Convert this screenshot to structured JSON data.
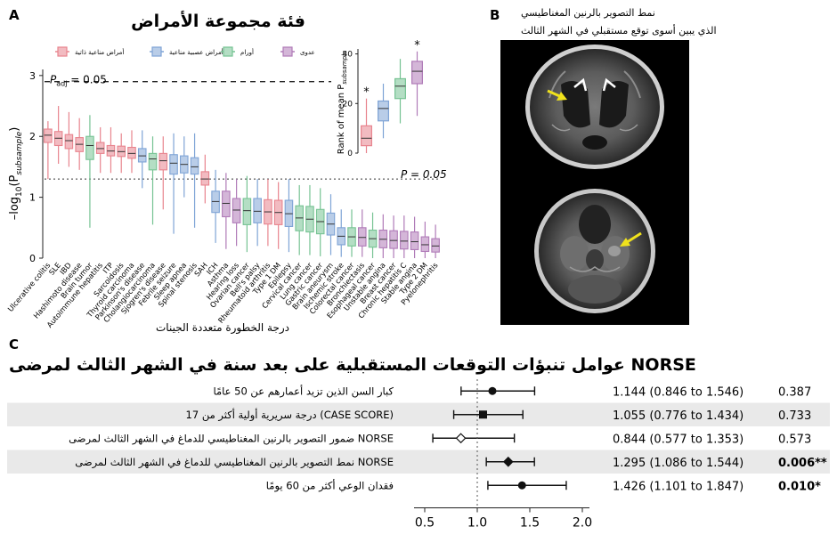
{
  "panel_a": {
    "label": "A",
    "title": "فئة مجموعة الأمراض",
    "legend": [
      {
        "name": "أمراض مناعية ذاتية",
        "color": "#e8848e"
      },
      {
        "name": "أمراض عصبية مناعية",
        "color": "#7fa4d6"
      },
      {
        "name": "أورام",
        "color": "#76c393"
      },
      {
        "name": "عدوى",
        "color": "#b07bb8"
      }
    ],
    "padj_label": "P",
    "padj_sub": "adj",
    "padj_rest": " = 0.05",
    "p_label": "P = 0.05",
    "ylabel_pre": "–log",
    "ylabel_sub": "10",
    "ylabel_paren": "(P",
    "ylabel_psub": "subsample",
    "ylabel_close": ")",
    "xlabel": "درجة الخطورة متعددة الجينات",
    "yticks": [
      "0",
      "1",
      "2",
      "3"
    ],
    "inset_ylabel": "Rank of mean P",
    "inset_ylabel_sub": "subsample",
    "inset_yticks": [
      "0",
      "20",
      "40"
    ],
    "inset_star": "*"
  },
  "panel_b": {
    "label": "B",
    "caption_line1": "نمط التصوير بالرنين المغناطيسي",
    "caption_line2": "الذي يبين أسوى توقع مستقبلي في الشهر الثالث"
  },
  "panel_c": {
    "label": "C",
    "title": "عوامل تنبؤات التوقعات المستقبلية على بعد سنة في الشهر الثالث لمرضى NORSE",
    "xticks": [
      "0.5",
      "1.0",
      "1.5",
      "2.0"
    ]
  },
  "chart_data": [
    {
      "type": "box",
      "ylim": [
        0,
        3.1
      ],
      "significance_lines": [
        {
          "label": "P = 0.05",
          "y": 1.3
        },
        {
          "label": "Padj = 0.05",
          "y": 2.9
        }
      ],
      "categories": [
        "Ulcerative colitis",
        "SLE",
        "IBD",
        "Hashimoto disease",
        "Brain tumor",
        "Autoimmune hepatitis",
        "ITP",
        "Sarcoidosis",
        "Thyroid carcinoma",
        "Parkinson's disease",
        "Cholangiocarcinoma",
        "Sjogren's disease",
        "Febrile seizure",
        "Sleep apnea",
        "Spinal stenosis",
        "SAH",
        "ICH",
        "Asthma",
        "Hearing loss",
        "Ovarian cancer",
        "Bell's palsy",
        "Rheumatoid arthritis",
        "Type 1 DM",
        "Epilepsy",
        "Cervical cancer",
        "Lung cancer",
        "Gastric cancer",
        "Brain aneurysm",
        "Ischemic stroke",
        "Colorectal cancer",
        "Bronchiectasis",
        "Esophageal cancer",
        "Unstable angina",
        "Breast cancer",
        "Chronic hepatitis C",
        "Stable angina",
        "Type 2 DM",
        "Pyelonephritis"
      ],
      "groups": [
        "autoimmune",
        "autoimmune",
        "autoimmune",
        "autoimmune",
        "tumor",
        "autoimmune",
        "autoimmune",
        "autoimmune",
        "autoimmune",
        "neuroimmune",
        "tumor",
        "autoimmune",
        "neuroimmune",
        "neuroimmune",
        "neuroimmune",
        "autoimmune",
        "neuroimmune",
        "infection",
        "infection",
        "tumor",
        "neuroimmune",
        "autoimmune",
        "autoimmune",
        "neuroimmune",
        "tumor",
        "tumor",
        "tumor",
        "neuroimmune",
        "neuroimmune",
        "tumor",
        "infection",
        "tumor",
        "infection",
        "infection",
        "infection",
        "infection",
        "infection",
        "infection"
      ],
      "medians": [
        2.02,
        1.97,
        1.93,
        1.87,
        1.85,
        1.8,
        1.76,
        1.75,
        1.72,
        1.68,
        1.63,
        1.6,
        1.56,
        1.54,
        1.5,
        1.3,
        0.93,
        0.9,
        0.79,
        0.78,
        0.77,
        0.76,
        0.75,
        0.73,
        0.66,
        0.64,
        0.6,
        0.56,
        0.36,
        0.35,
        0.34,
        0.32,
        0.31,
        0.29,
        0.28,
        0.27,
        0.22,
        0.2
      ],
      "q1": [
        1.9,
        1.85,
        1.8,
        1.75,
        1.62,
        1.72,
        1.68,
        1.67,
        1.64,
        1.58,
        1.45,
        1.45,
        1.38,
        1.4,
        1.38,
        1.2,
        0.75,
        0.68,
        0.58,
        0.55,
        0.58,
        0.56,
        0.55,
        0.52,
        0.45,
        0.43,
        0.4,
        0.38,
        0.22,
        0.2,
        0.2,
        0.18,
        0.17,
        0.16,
        0.15,
        0.14,
        0.11,
        0.1
      ],
      "q3": [
        2.12,
        2.08,
        2.03,
        1.98,
        2.0,
        1.9,
        1.85,
        1.84,
        1.82,
        1.8,
        1.72,
        1.72,
        1.7,
        1.68,
        1.65,
        1.42,
        1.1,
        1.1,
        0.98,
        0.98,
        0.98,
        0.96,
        0.95,
        0.95,
        0.86,
        0.85,
        0.8,
        0.74,
        0.5,
        0.5,
        0.5,
        0.46,
        0.46,
        0.45,
        0.44,
        0.43,
        0.35,
        0.32
      ],
      "whisker_low": [
        1.3,
        1.55,
        1.5,
        1.45,
        0.5,
        1.4,
        1.4,
        1.4,
        1.4,
        1.15,
        0.55,
        0.8,
        0.4,
        1.0,
        0.5,
        0.9,
        0.25,
        0.15,
        0.2,
        0.1,
        0.2,
        0.2,
        0.15,
        0.1,
        0.05,
        0.05,
        0.03,
        0.05,
        0.02,
        0.02,
        0.02,
        0.0,
        0.0,
        0.0,
        0.0,
        0.0,
        0.0,
        0.0
      ],
      "whisker_high": [
        2.25,
        2.5,
        2.4,
        2.3,
        2.35,
        2.15,
        2.15,
        2.05,
        2.1,
        2.1,
        2.0,
        2.0,
        2.05,
        2.0,
        2.05,
        1.7,
        1.45,
        1.4,
        1.3,
        1.35,
        1.3,
        1.3,
        1.25,
        1.3,
        1.2,
        1.2,
        1.15,
        1.05,
        0.8,
        0.8,
        0.8,
        0.75,
        0.72,
        0.7,
        0.7,
        0.68,
        0.6,
        0.55
      ]
    },
    {
      "type": "box",
      "ylim": [
        0,
        42
      ],
      "groups": [
        "autoimmune",
        "neuroimmune",
        "tumor",
        "infection"
      ],
      "medians": [
        6,
        18,
        27,
        33
      ],
      "q1": [
        3,
        13,
        22,
        28
      ],
      "q3": [
        11,
        21,
        30,
        37
      ],
      "whisker_low": [
        0,
        6,
        12,
        15
      ],
      "whisker_high": [
        22,
        28,
        38,
        41
      ],
      "significant": [
        true,
        false,
        false,
        true
      ]
    },
    {
      "type": "forest",
      "reference_line": 1.0,
      "xlim": [
        0.5,
        2.0
      ],
      "rows": [
        {
          "label": "كبار السن الذين تزيد أعمارهم عن 50 عامًا",
          "or": 1.144,
          "lo": 0.846,
          "hi": 1.546,
          "ci_text": "1.144 (0.846 to 1.546)",
          "p_text": "0.387",
          "p_bold": false,
          "marker": "circle"
        },
        {
          "label": "درجة سريرية أولية أكثر من 17 (CASE SCORE)",
          "or": 1.055,
          "lo": 0.776,
          "hi": 1.434,
          "ci_text": "1.055 (0.776 to 1.434)",
          "p_text": "0.733",
          "p_bold": false,
          "marker": "square"
        },
        {
          "label": "ضمور التصوير بالرنين المغناطيسي للدماغ في الشهر الثالث لمرضى NORSE",
          "or": 0.844,
          "lo": 0.577,
          "hi": 1.353,
          "ci_text": "0.844 (0.577 to 1.353)",
          "p_text": "0.573",
          "p_bold": false,
          "marker": "diamond"
        },
        {
          "label": "نمط التصوير بالرنين المغناطيسي للدماغ في الشهر الثالث لمرضى NORSE",
          "or": 1.295,
          "lo": 1.086,
          "hi": 1.544,
          "ci_text": "1.295 (1.086 to 1.544)",
          "p_text": "0.006**",
          "p_bold": true,
          "marker": "diamond"
        },
        {
          "label": "فقدان الوعي أكثر من 60 يومًا",
          "or": 1.426,
          "lo": 1.101,
          "hi": 1.847,
          "ci_text": "1.426 (1.101 to 1.847)",
          "p_text": "0.010*",
          "p_bold": true,
          "marker": "circle"
        }
      ]
    }
  ]
}
